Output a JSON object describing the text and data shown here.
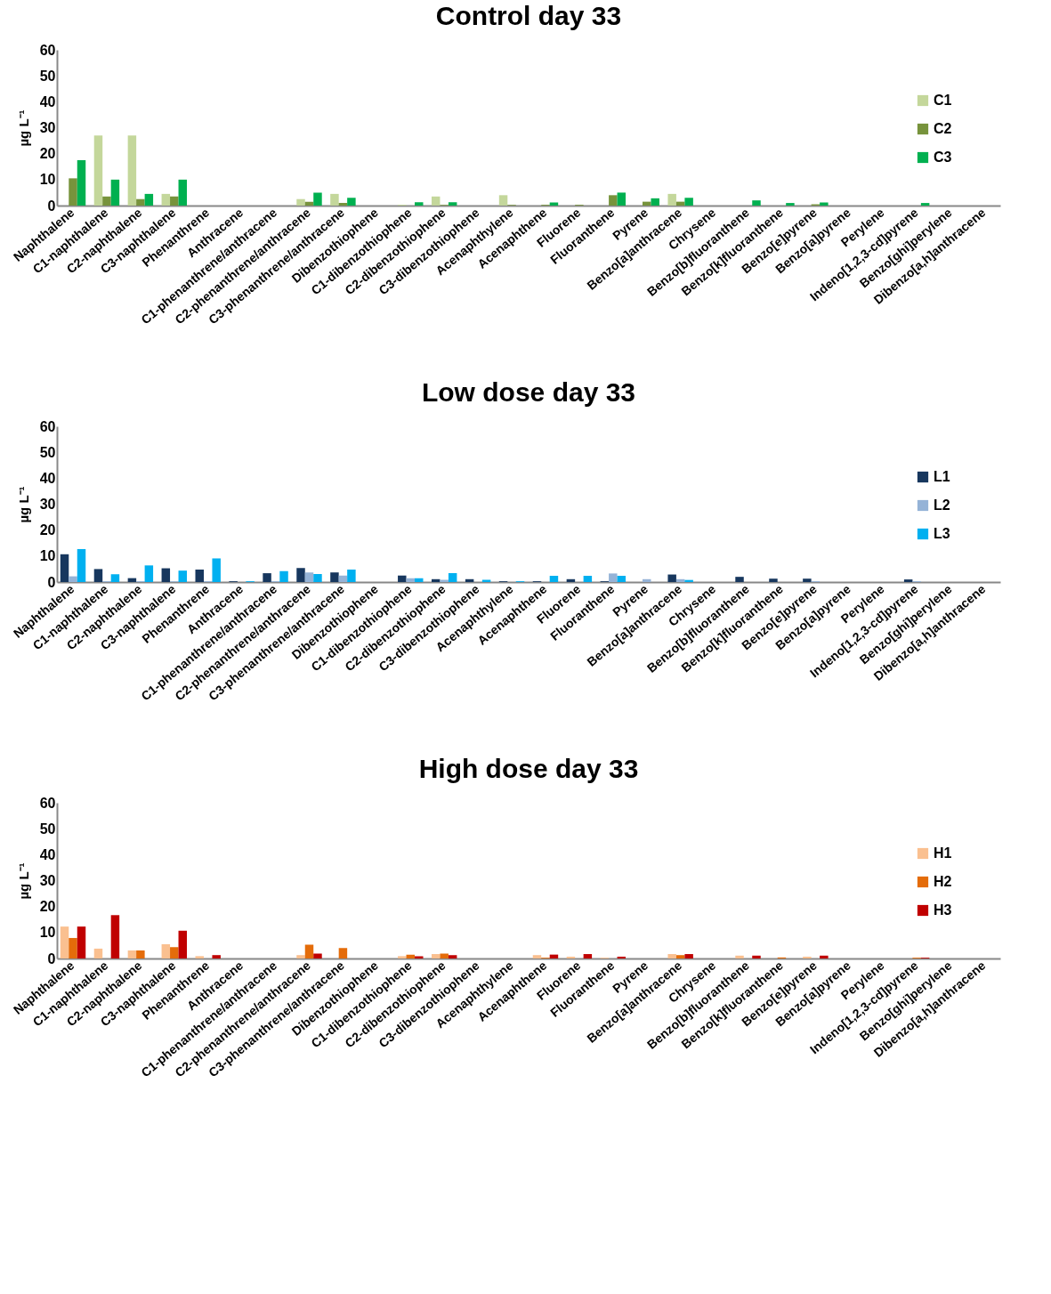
{
  "chart_data": [
    {
      "type": "bar",
      "title": "Control day 33",
      "ylabel": "µg L⁻¹",
      "categories": [
        "Naphthalene",
        "C1-naphthalene",
        "C2-naphthalene",
        "C3-naphthalene",
        "Phenanthrene",
        "Anthracene",
        "C1-phenanthrene/anthracene",
        "C2-phenanthrene/anthracene",
        "C3-phenanthrene/anthracene",
        "Dibenzothiophene",
        "C1-dibenzothiophene",
        "C2-dibenzothiophene",
        "C3-dibenzothiophene",
        "Acenaphthylene",
        "Acenaphthene",
        "Fluorene",
        "Fluoranthene",
        "Pyrene",
        "Benzo[a]anthracene",
        "Chrysene",
        "Benzo[b]fluoranthene",
        "Benzo[k]fluoranthene",
        "Benzo[e]pyrene",
        "Benzo[a]pyrene",
        "Perylene",
        "Indeno[1,2,3-cd]pyrene",
        "Benzo[ghi]perylene",
        "Dibenzo[a,h]anthracene"
      ],
      "series": [
        {
          "name": "C1",
          "color": "#c4d79b",
          "values": [
            0,
            27,
            27,
            4.5,
            0,
            0,
            0,
            2.5,
            4.5,
            0,
            0.3,
            3.5,
            0,
            4,
            0,
            0,
            0,
            0,
            4.5,
            0,
            0,
            0,
            0,
            0,
            0,
            0,
            0,
            0
          ]
        },
        {
          "name": "C2",
          "color": "#77933c",
          "values": [
            10.5,
            3.5,
            2.5,
            3.5,
            0,
            0,
            0,
            1.5,
            1,
            0,
            0,
            0.3,
            0,
            0.3,
            0.3,
            0.3,
            4,
            1.5,
            1.5,
            0,
            0,
            0,
            0.5,
            0,
            0,
            0,
            0,
            0
          ]
        },
        {
          "name": "C3",
          "color": "#00b050",
          "values": [
            17.5,
            10,
            4.5,
            10,
            0,
            0,
            0,
            5,
            3,
            0,
            1.3,
            1.3,
            0,
            0,
            1.2,
            0,
            5,
            2.8,
            3,
            0,
            2,
            1,
            1.2,
            0,
            0,
            1,
            0,
            0
          ]
        }
      ],
      "ylim": [
        0,
        60
      ],
      "yticks": [
        0,
        10,
        20,
        30,
        40,
        50,
        60
      ],
      "grid": false,
      "legend": "right"
    },
    {
      "type": "bar",
      "title": "Low dose day 33",
      "ylabel": "µg L⁻¹",
      "categories": [
        "Naphthalene",
        "C1-naphthalene",
        "C2-naphthalene",
        "C3-naphthalene",
        "Phenanthrene",
        "Anthracene",
        "C1-phenanthrene/anthracene",
        "C2-phenanthrene/anthracene",
        "C3-phenanthrene/anthracene",
        "Dibenzothiophene",
        "C1-dibenzothiophene",
        "C2-dibenzothiophene",
        "C3-dibenzothiophene",
        "Acenaphthylene",
        "Acenaphthene",
        "Fluorene",
        "Fluoranthene",
        "Pyrene",
        "Benzo[a]anthracene",
        "Chrysene",
        "Benzo[b]fluoranthene",
        "Benzo[k]fluoranthene",
        "Benzo[e]pyrene",
        "Benzo[a]pyrene",
        "Perylene",
        "Indeno[1,2,3-cd]pyrene",
        "Benzo[ghi]perylene",
        "Dibenzo[a,h]anthracene"
      ],
      "series": [
        {
          "name": "L1",
          "color": "#17375e",
          "values": [
            10.7,
            5,
            1.5,
            5.3,
            4.8,
            0.3,
            3.4,
            5.4,
            3.7,
            0,
            2.5,
            1.1,
            1.1,
            0.3,
            0.3,
            1.1,
            0.3,
            0,
            2.9,
            0,
            2,
            1.3,
            1.3,
            0,
            0,
            1,
            0,
            0
          ]
        },
        {
          "name": "L2",
          "color": "#95b3d7",
          "values": [
            2.2,
            0.3,
            0.3,
            0.3,
            0.3,
            0,
            0.3,
            3.7,
            2.5,
            0,
            1.5,
            0.9,
            0,
            0,
            0,
            0,
            3.3,
            1.1,
            1.1,
            0,
            0,
            0,
            0.3,
            0,
            0,
            0.3,
            0,
            0
          ]
        },
        {
          "name": "L3",
          "color": "#00b0f0",
          "values": [
            12.7,
            3,
            6.4,
            4.4,
            9.1,
            0.3,
            4.2,
            3.1,
            4.8,
            0,
            1.5,
            3.4,
            0.9,
            0.3,
            2.4,
            2.4,
            2.4,
            0,
            0.8,
            0,
            0,
            0,
            0,
            0,
            0,
            0,
            0,
            0
          ]
        }
      ],
      "ylim": [
        0,
        60
      ],
      "yticks": [
        0,
        10,
        20,
        30,
        40,
        50,
        60
      ],
      "grid": false,
      "legend": "right"
    },
    {
      "type": "bar",
      "title": "High dose day 33",
      "ylabel": "µg L⁻¹",
      "categories": [
        "Naphthalene",
        "C1-naphthalene",
        "C2-naphthalene",
        "C3-naphthalene",
        "Phenanthrene",
        "Anthracene",
        "C1-phenanthrene/anthracene",
        "C2-phenanthrene/anthracene",
        "C3-phenanthrene/anthracene",
        "Dibenzothiophene",
        "C1-dibenzothiophene",
        "C2-dibenzothiophene",
        "C3-dibenzothiophene",
        "Acenaphthylene",
        "Acenaphthene",
        "Fluorene",
        "Fluoranthene",
        "Pyrene",
        "Benzo[a]anthracene",
        "Chrysene",
        "Benzo[b]fluoranthene",
        "Benzo[k]fluoranthene",
        "Benzo[e]pyrene",
        "Benzo[a]pyrene",
        "Perylene",
        "Indeno[1,2,3-cd]pyrene",
        "Benzo[ghi]perylene",
        "Dibenzo[a,h]anthracene"
      ],
      "series": [
        {
          "name": "H1",
          "color": "#fac090",
          "values": [
            12.3,
            3.8,
            3.1,
            5.5,
            0.9,
            0,
            0,
            1.3,
            0,
            0,
            0.9,
            1.7,
            0,
            0,
            1.3,
            0.7,
            0.3,
            0,
            1.7,
            0,
            1.1,
            0,
            0.7,
            0,
            0,
            0,
            0,
            0
          ]
        },
        {
          "name": "H2",
          "color": "#e46c0a",
          "values": [
            7.9,
            0,
            3.1,
            4.4,
            0,
            0,
            0,
            5.3,
            4,
            0,
            1.5,
            1.9,
            0,
            0,
            0.3,
            0,
            0,
            0,
            1.3,
            0,
            0,
            0.4,
            0,
            0,
            0,
            0.3,
            0,
            0
          ]
        },
        {
          "name": "H3",
          "color": "#c00000",
          "values": [
            12.3,
            16.7,
            0,
            10.7,
            1.3,
            0,
            0,
            1.9,
            0,
            0,
            0.9,
            1.3,
            0,
            0,
            1.5,
            1.7,
            0.7,
            0,
            1.7,
            0,
            1.1,
            0,
            1.1,
            0,
            0,
            0.3,
            0,
            0
          ]
        }
      ],
      "ylim": [
        0,
        60
      ],
      "yticks": [
        0,
        10,
        20,
        30,
        40,
        50,
        60
      ],
      "grid": false,
      "legend": "right"
    }
  ]
}
